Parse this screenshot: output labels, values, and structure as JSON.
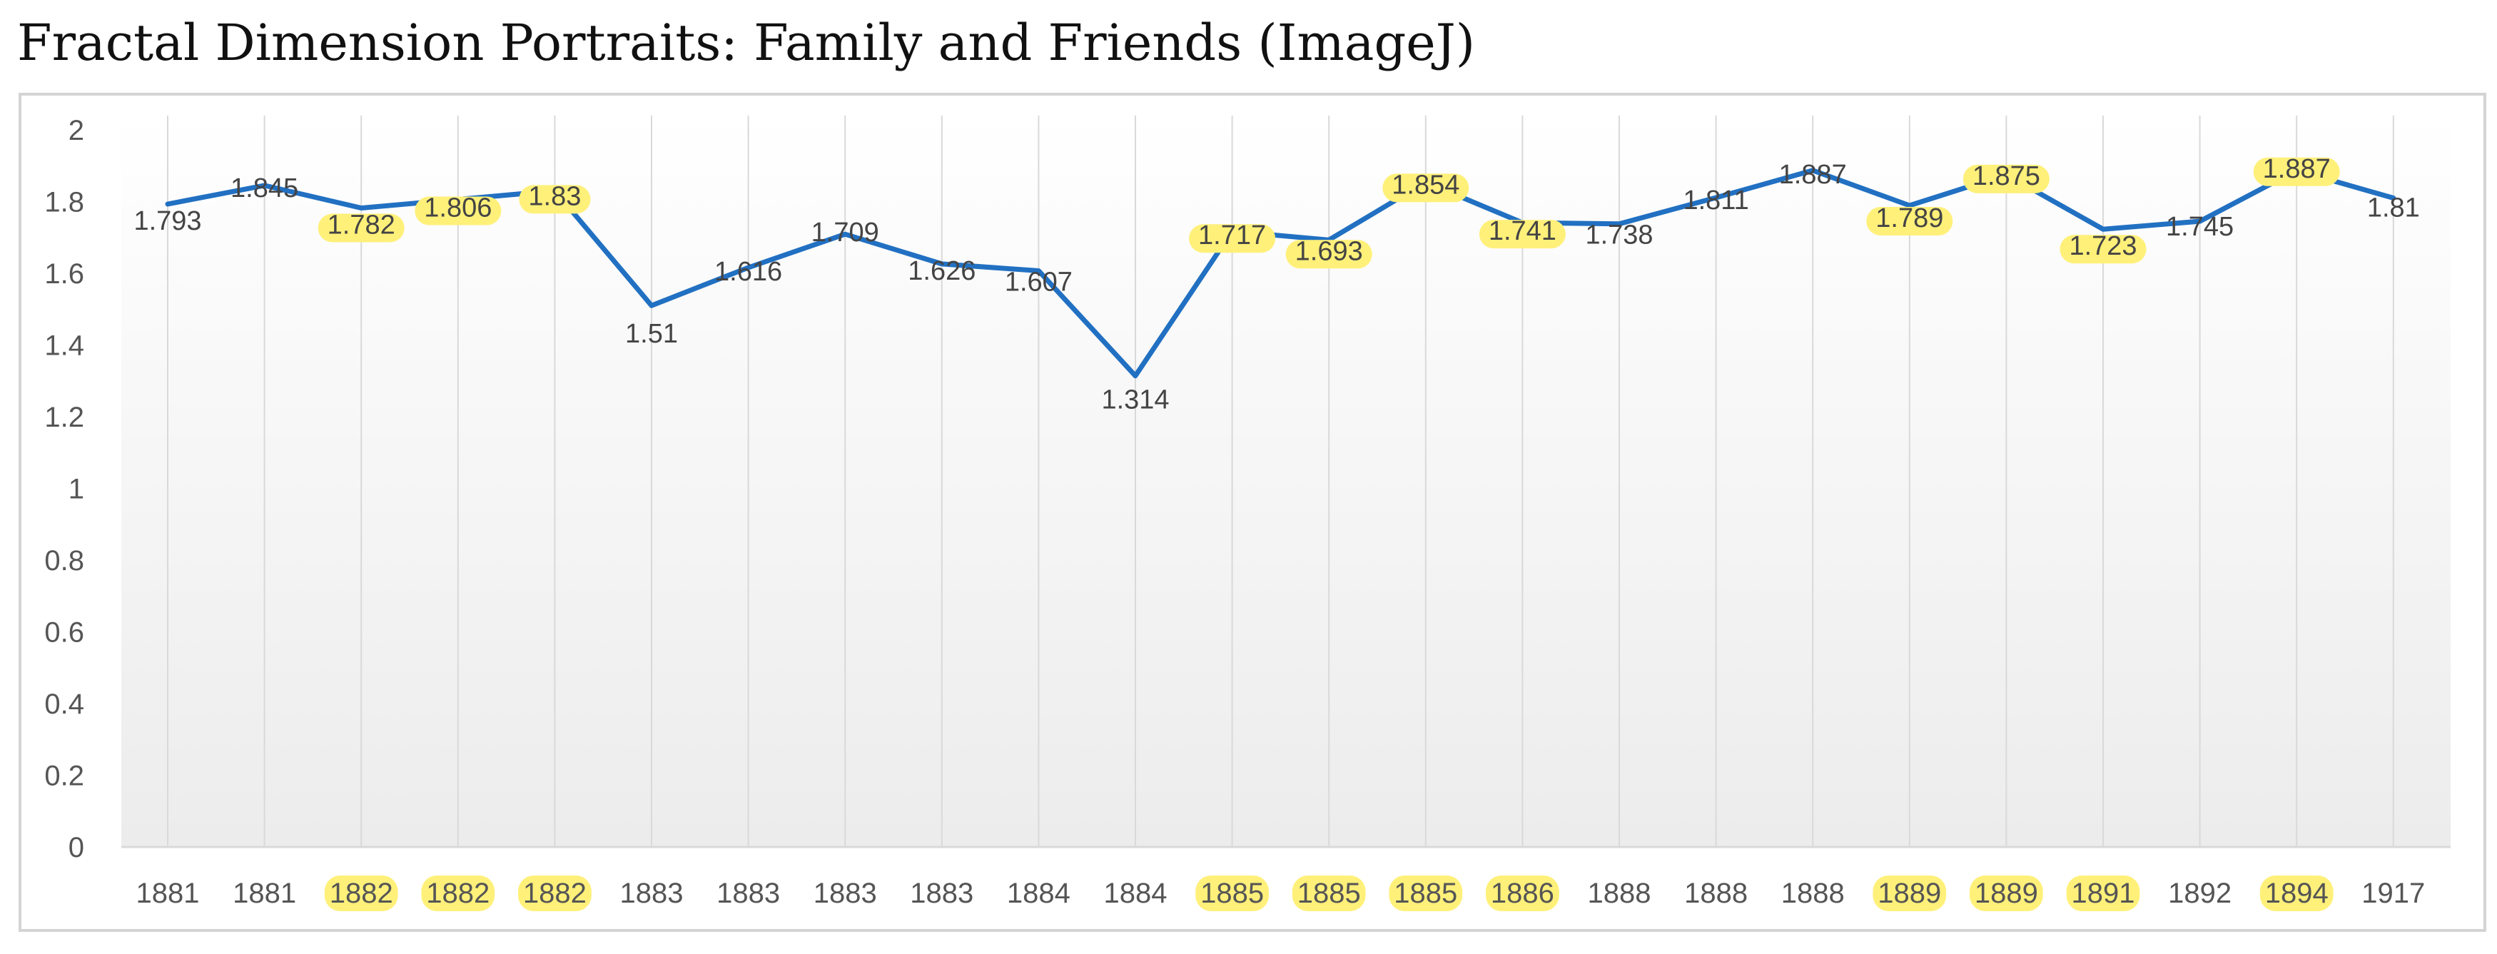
{
  "title": "Fractal Dimension Portraits: Family and Friends (ImageJ)",
  "colors": {
    "line": "#2170C2",
    "highlight": "#FFF07A",
    "grid": "#D9D9D9",
    "frame": "#D4D4D4"
  },
  "chart_data": {
    "type": "line",
    "title": "Fractal Dimension Portraits: Family and Friends (ImageJ)",
    "xlabel": "",
    "ylabel": "",
    "ylim": [
      0,
      2
    ],
    "yticks": [
      "0",
      "0.2",
      "0.4",
      "0.6",
      "0.8",
      "1",
      "1.2",
      "1.4",
      "1.6",
      "1.8",
      "2"
    ],
    "grid": "vertical",
    "legend": "none",
    "categories": [
      "1881",
      "1881",
      "1882",
      "1882",
      "1882",
      "1883",
      "1883",
      "1883",
      "1883",
      "1884",
      "1884",
      "1885",
      "1885",
      "1885",
      "1886",
      "1888",
      "1888",
      "1888",
      "1889",
      "1889",
      "1891",
      "1892",
      "1894",
      "1917"
    ],
    "values": [
      1.793,
      1.845,
      1.782,
      1.806,
      1.83,
      1.51,
      1.616,
      1.709,
      1.626,
      1.607,
      1.314,
      1.717,
      1.693,
      1.854,
      1.741,
      1.738,
      1.811,
      1.887,
      1.789,
      1.875,
      1.723,
      1.745,
      1.887,
      1.81
    ],
    "labels": [
      "1.793",
      "1.845",
      "1.782",
      "1.806",
      "1.83",
      "1.51",
      "1.616",
      "1.709",
      "1.626",
      "1.607",
      "1.314",
      "1.717",
      "1.693",
      "1.854",
      "1.741",
      "1.738",
      "1.811",
      "1.887",
      "1.789",
      "1.875",
      "1.723",
      "1.745",
      "1.887",
      "1.81"
    ],
    "highlighted": [
      false,
      false,
      true,
      true,
      true,
      false,
      false,
      false,
      false,
      false,
      false,
      true,
      true,
      true,
      true,
      false,
      false,
      false,
      true,
      true,
      true,
      false,
      true,
      false
    ]
  }
}
